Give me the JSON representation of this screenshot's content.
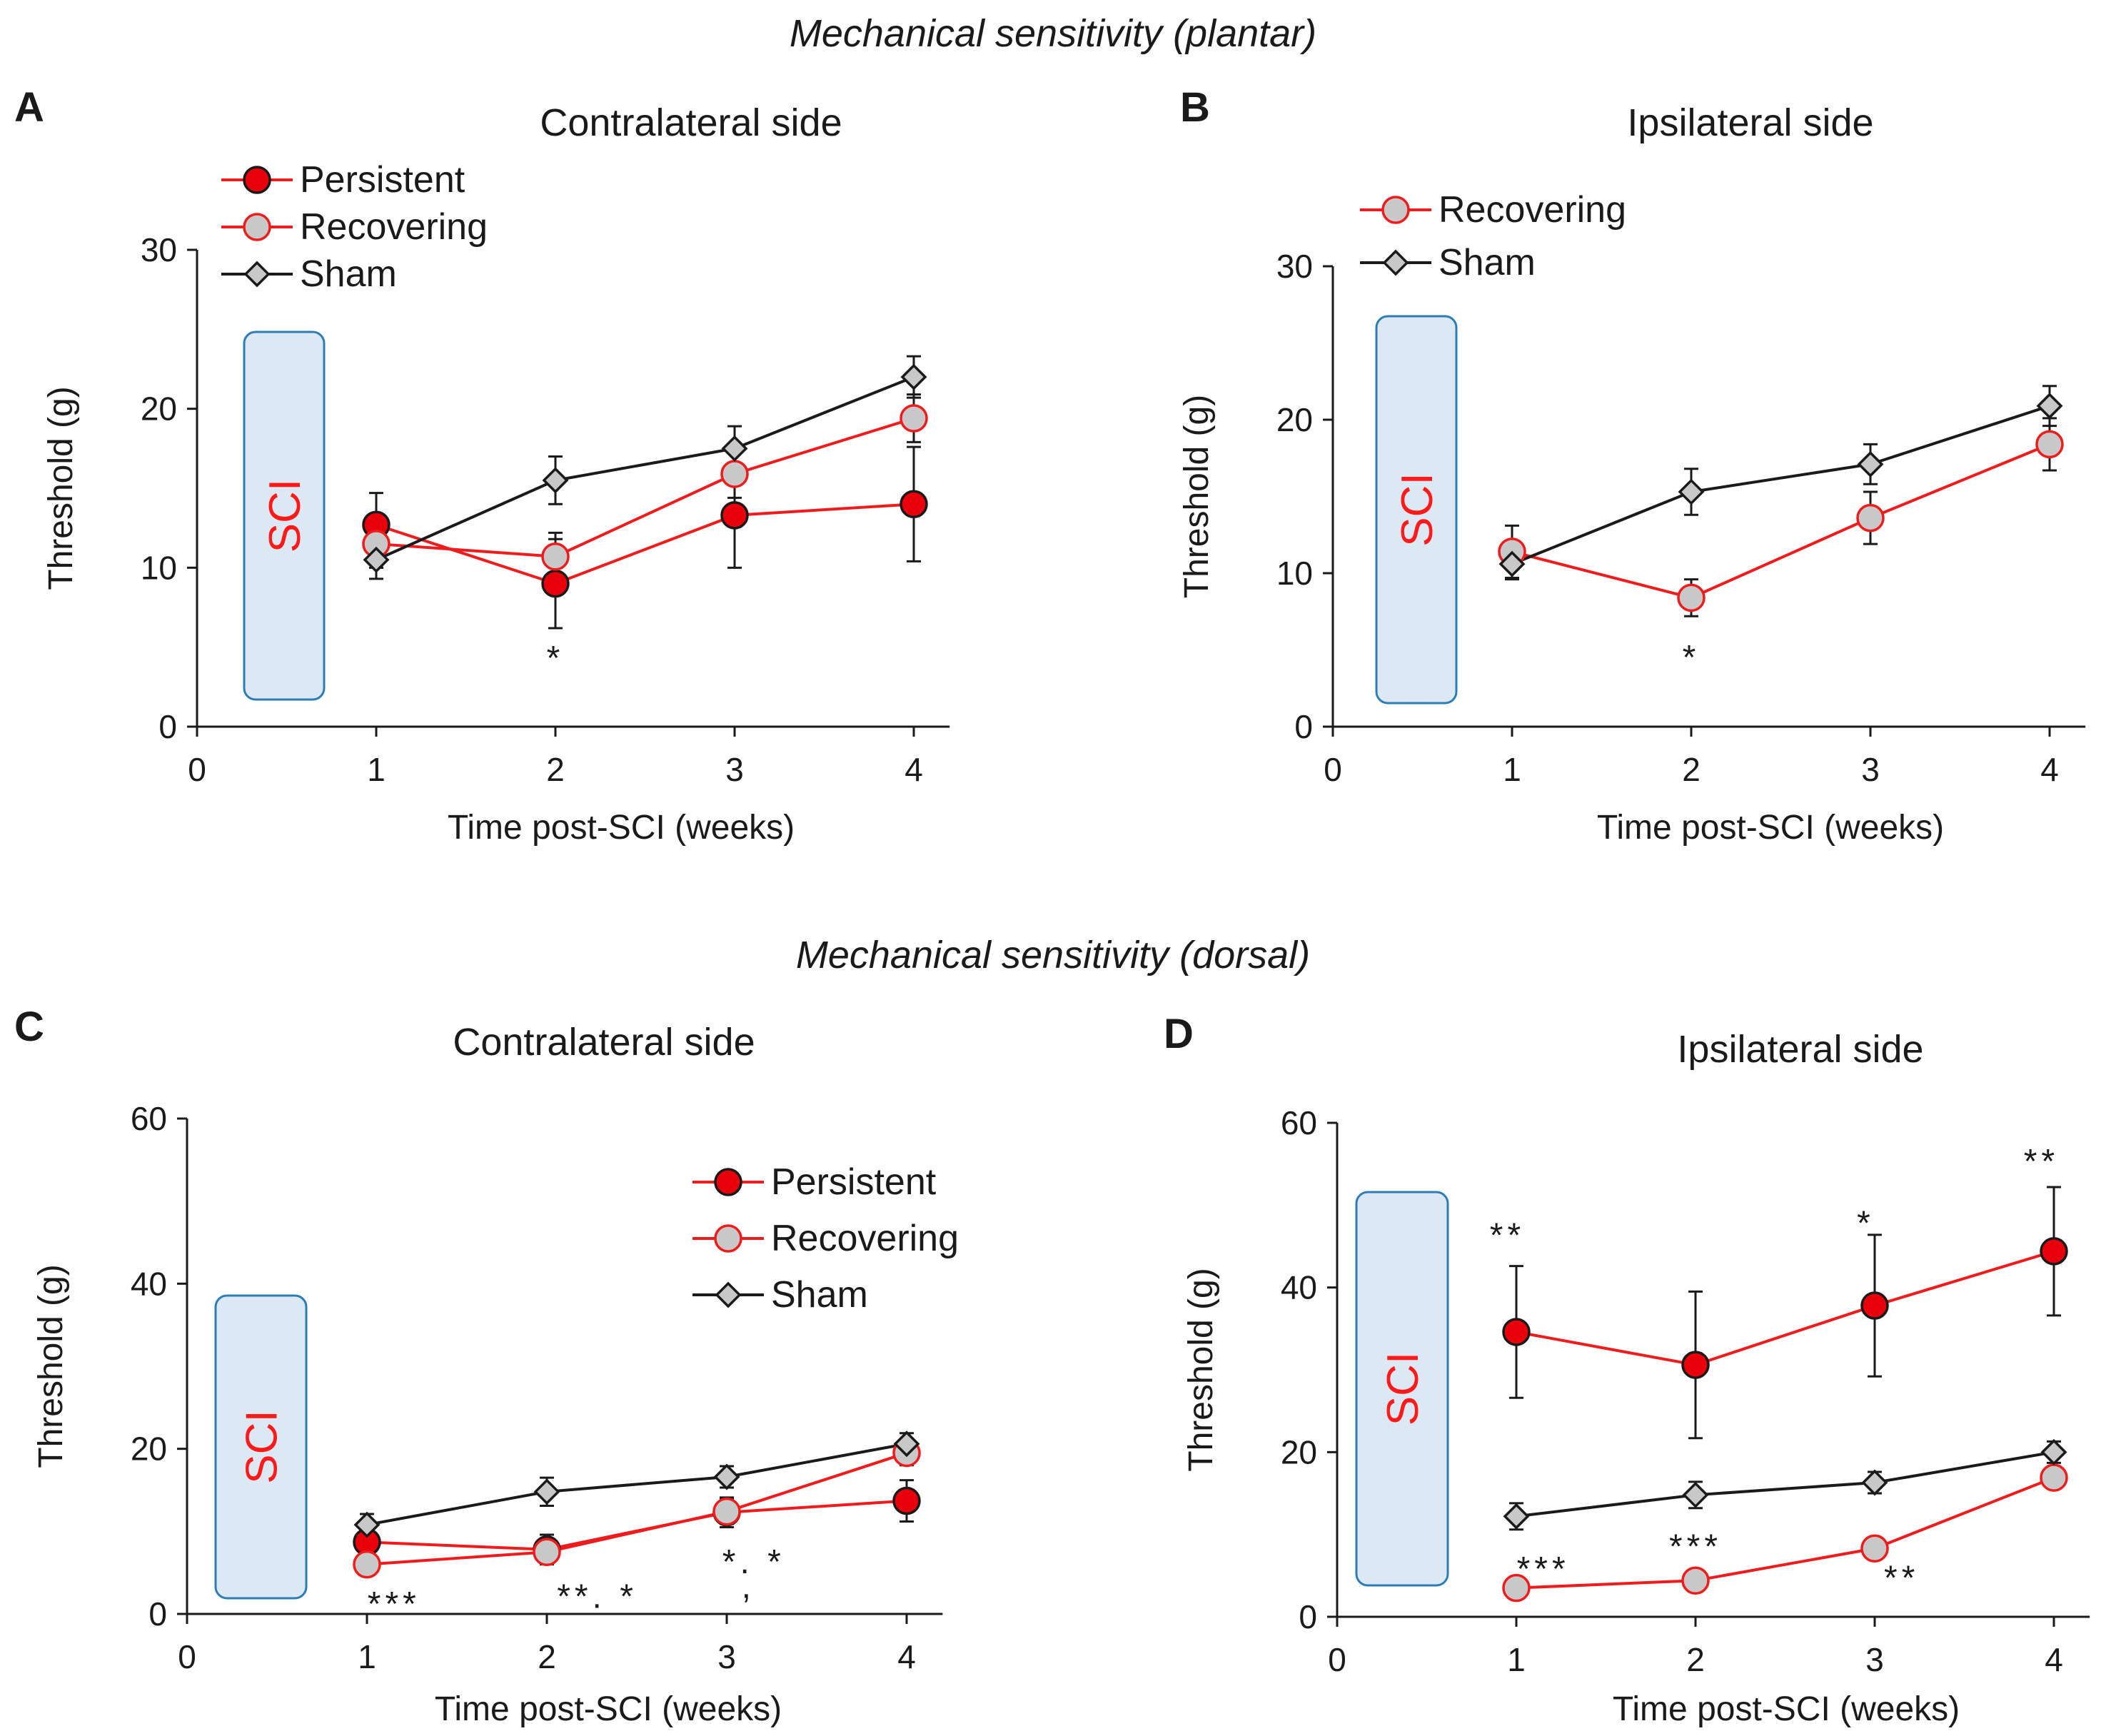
{
  "figure": {
    "section_titles": {
      "plantar": "Mechanical sensitivity (plantar)",
      "dorsal": "Mechanical sensitivity (dorsal)"
    },
    "colors": {
      "red": "#ee1c1c",
      "persistent_fill": "#e8000b",
      "marker_gray": "#c8c8c8",
      "black": "#1a1a1a",
      "sci_box_fill": "#dce9f5",
      "sci_box_border": "#2e7cb5",
      "sci_text": "#ff1a1a"
    }
  },
  "chart_data": [
    {
      "id": "A",
      "panel_label": "A",
      "type": "line",
      "title": "Contralateral side",
      "xlabel": "Time post-SCI (weeks)",
      "ylabel": "Threshold (g)",
      "xlim": [
        0,
        4.2
      ],
      "ylim": [
        0,
        30
      ],
      "xticks": [
        0,
        1,
        2,
        3,
        4
      ],
      "yticks": [
        0,
        10,
        20,
        30
      ],
      "sci_label": "SCI",
      "legend_position": "top-left",
      "legend": [
        "Persistent",
        "Recovering",
        "Sham"
      ],
      "series": [
        {
          "name": "Persistent",
          "x": [
            1,
            2,
            3,
            4
          ],
          "values": [
            12.7,
            9.0,
            13.3,
            14.0
          ],
          "errors": [
            2.0,
            2.8,
            3.3,
            3.6
          ]
        },
        {
          "name": "Recovering",
          "x": [
            1,
            2,
            3,
            4
          ],
          "values": [
            11.5,
            10.7,
            15.9,
            19.4
          ],
          "errors": [
            1.5,
            1.5,
            1.5,
            1.5
          ]
        },
        {
          "name": "Sham",
          "x": [
            1,
            2,
            3,
            4
          ],
          "values": [
            10.5,
            15.5,
            17.5,
            22.0
          ],
          "errors": [
            1.2,
            1.5,
            1.4,
            1.3
          ]
        }
      ],
      "annotations": [
        {
          "x": 2,
          "y": 4.4,
          "text": "*"
        }
      ]
    },
    {
      "id": "B",
      "panel_label": "B",
      "type": "line",
      "title": "Ipsilateral side",
      "xlabel": "Time post-SCI (weeks)",
      "ylabel": "Threshold (g)",
      "xlim": [
        0,
        4.2
      ],
      "ylim": [
        0,
        30
      ],
      "xticks": [
        0,
        1,
        2,
        3,
        4
      ],
      "yticks": [
        0,
        10,
        20,
        30
      ],
      "sci_label": "SCI",
      "legend_position": "top-left",
      "legend": [
        "Recovering",
        "Sham"
      ],
      "series": [
        {
          "name": "Recovering",
          "x": [
            1,
            2,
            3,
            4
          ],
          "values": [
            11.4,
            8.4,
            13.6,
            18.4
          ],
          "errors": [
            1.7,
            1.2,
            1.7,
            1.7
          ]
        },
        {
          "name": "Sham",
          "x": [
            1,
            2,
            3,
            4
          ],
          "values": [
            10.6,
            15.3,
            17.1,
            20.9
          ],
          "errors": [
            1.0,
            1.5,
            1.3,
            1.3
          ]
        }
      ],
      "annotations": [
        {
          "x": 2,
          "y": 4.6,
          "text": "*"
        }
      ]
    },
    {
      "id": "C",
      "panel_label": "C",
      "type": "line",
      "title": "Contralateral side",
      "xlabel": "Time post-SCI (weeks)",
      "ylabel": "Threshold (g)",
      "xlim": [
        0,
        4.2
      ],
      "ylim": [
        0,
        60
      ],
      "xticks": [
        0,
        1,
        2,
        3,
        4
      ],
      "yticks": [
        0,
        20,
        40,
        60
      ],
      "sci_label": "SCI",
      "legend_position": "top-right",
      "legend": [
        "Persistent",
        "Recovering",
        "Sham"
      ],
      "series": [
        {
          "name": "Persistent",
          "x": [
            1,
            2,
            3,
            4
          ],
          "values": [
            8.7,
            7.8,
            12.3,
            13.7
          ],
          "errors": [
            1.5,
            1.8,
            1.8,
            2.5
          ]
        },
        {
          "name": "Recovering",
          "x": [
            1,
            2,
            3,
            4
          ],
          "values": [
            6.0,
            7.5,
            12.4,
            19.5
          ],
          "errors": [
            1.2,
            1.2,
            1.5,
            1.5
          ]
        },
        {
          "name": "Sham",
          "x": [
            1,
            2,
            3,
            4
          ],
          "values": [
            10.8,
            14.8,
            16.6,
            20.6
          ],
          "errors": [
            1.3,
            1.7,
            1.3,
            1.3
          ]
        }
      ],
      "annotations": [
        {
          "x": 1.15,
          "y": 1.4,
          "text": "***"
        },
        {
          "x": 2.28,
          "y": 2.3,
          "text": "**. *"
        },
        {
          "x": 3.15,
          "y": 6.5,
          "text": "*. *"
        },
        {
          "x": 3.12,
          "y": 3.5,
          "text": ","
        }
      ]
    },
    {
      "id": "D",
      "panel_label": "D",
      "type": "line",
      "title": "Ipsilateral side",
      "xlabel": "Time post-SCI (weeks)",
      "ylabel": "Threshold (g)",
      "xlim": [
        0,
        4.2
      ],
      "ylim": [
        0,
        60
      ],
      "xticks": [
        0,
        1,
        2,
        3,
        4
      ],
      "yticks": [
        0,
        20,
        40,
        60
      ],
      "sci_label": "SCI",
      "legend_position": "none",
      "legend": [],
      "series": [
        {
          "name": "Persistent",
          "x": [
            1,
            2,
            3,
            4
          ],
          "values": [
            34.6,
            30.6,
            37.8,
            44.4
          ],
          "errors": [
            8.0,
            8.9,
            8.6,
            7.8
          ]
        },
        {
          "name": "Recovering",
          "x": [
            1,
            2,
            3,
            4
          ],
          "values": [
            3.5,
            4.4,
            8.3,
            16.9
          ],
          "errors": [
            0.7,
            0.8,
            1.0,
            1.2
          ]
        },
        {
          "name": "Sham",
          "x": [
            1,
            2,
            3,
            4
          ],
          "values": [
            12.2,
            14.8,
            16.3,
            20.0
          ],
          "errors": [
            1.6,
            1.6,
            1.3,
            1.3
          ]
        }
      ],
      "annotations": [
        {
          "x": 0.95,
          "y": 46.5,
          "text": "**"
        },
        {
          "x": 2.95,
          "y": 48.0,
          "text": "*"
        },
        {
          "x": 3.93,
          "y": 55.5,
          "text": "**"
        },
        {
          "x": 1.15,
          "y": 6.0,
          "text": "***"
        },
        {
          "x": 2.0,
          "y": 8.7,
          "text": "***"
        },
        {
          "x": 3.15,
          "y": 4.9,
          "text": "**"
        }
      ]
    }
  ]
}
